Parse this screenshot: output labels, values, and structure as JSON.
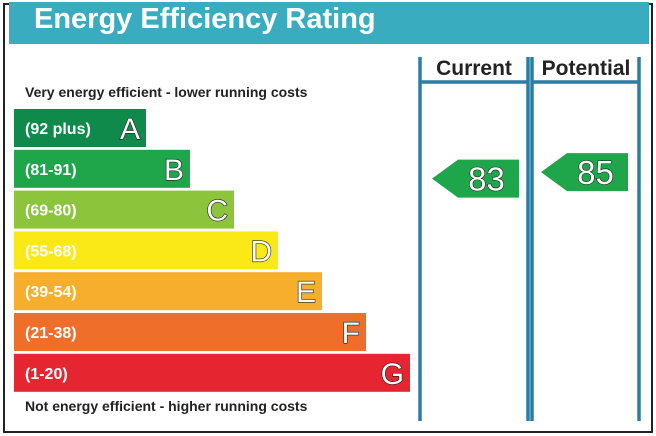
{
  "chart_data": {
    "type": "bar",
    "title": "Energy Efficiency Rating",
    "top_note": "Very energy efficient - lower running costs",
    "bottom_note": "Not energy efficient - higher running costs",
    "column_headers": {
      "current": "Current",
      "potential": "Potential"
    },
    "bands": [
      {
        "letter": "A",
        "range": "(92 plus)",
        "min": 92,
        "color": "#0f8a4a"
      },
      {
        "letter": "B",
        "range": "(81-91)",
        "min": 81,
        "color": "#1fa54a"
      },
      {
        "letter": "C",
        "range": "(69-80)",
        "min": 69,
        "color": "#8cc43c"
      },
      {
        "letter": "D",
        "range": "(55-68)",
        "min": 55,
        "color": "#fbe917"
      },
      {
        "letter": "E",
        "range": "(39-54)",
        "min": 39,
        "color": "#f6ae2c"
      },
      {
        "letter": "F",
        "range": "(21-38)",
        "min": 21,
        "color": "#ef6f2a"
      },
      {
        "letter": "G",
        "range": "(1-20)",
        "min": 1,
        "color": "#e52530"
      }
    ],
    "current": {
      "value": 83,
      "label": "83",
      "band": "B",
      "color": "#1fa54a"
    },
    "potential": {
      "value": 85,
      "label": "85",
      "band": "B",
      "color": "#1fa54a"
    },
    "frame_color": "#2a7ea4",
    "title_bg_color": "#3aacc0"
  }
}
